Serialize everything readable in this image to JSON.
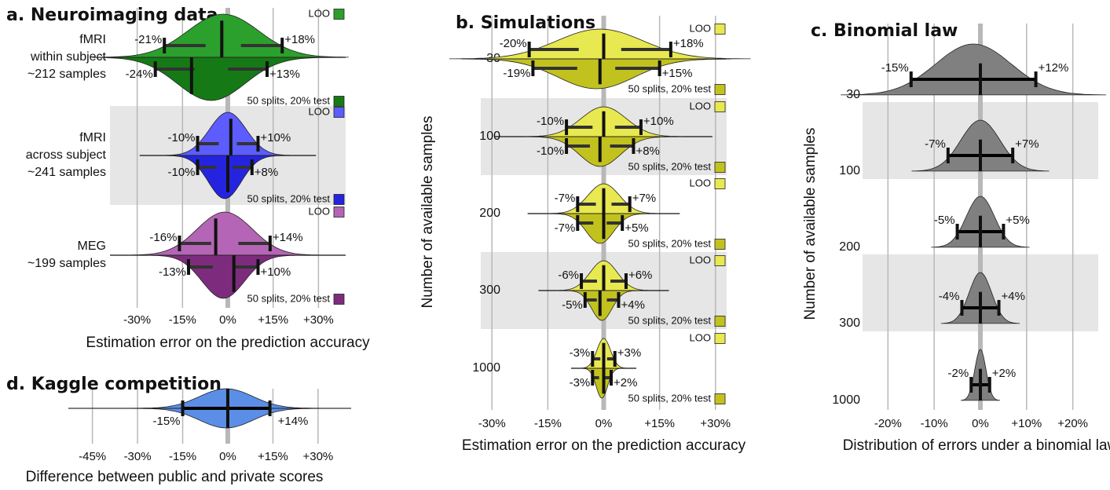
{
  "chart_data": [
    {
      "type": "violin",
      "title": "a. Neuroimaging data",
      "xlabel": "Estimation error on the prediction accuracy",
      "xlim": [
        -39,
        39
      ],
      "xticks": [
        {
          "value": -30,
          "label": "-30%"
        },
        {
          "value": -15,
          "label": "-15%"
        },
        {
          "value": 0,
          "label": "0%"
        },
        {
          "value": 15,
          "label": "+15%"
        },
        {
          "value": 30,
          "label": "+30%"
        }
      ],
      "rows": [
        {
          "label": [
            "fMRI",
            "within subject",
            "~212 samples"
          ],
          "violins": [
            {
              "name": "LOO",
              "color": "#2ca02c",
              "median": -2,
              "values": [
                -21,
                18
              ],
              "value_labels": [
                "-21%",
                "+18%"
              ]
            },
            {
              "name": "50 splits, 20% test",
              "color": "#157a15",
              "median": -12,
              "values": [
                -24,
                13
              ],
              "value_labels": [
                "-24%",
                "+13%"
              ]
            }
          ]
        },
        {
          "label": [
            "fMRI",
            "across subject",
            "~241 samples"
          ],
          "violins": [
            {
              "name": "LOO",
              "color": "#5c5cff",
              "median": 1,
              "values": [
                -10,
                10
              ],
              "value_labels": [
                "-10%",
                "+10%"
              ]
            },
            {
              "name": "50 splits, 20% test",
              "color": "#2424e0",
              "median": 0,
              "values": [
                -10,
                8
              ],
              "value_labels": [
                "-10%",
                "+8%"
              ]
            }
          ]
        },
        {
          "label": [
            "MEG",
            "~199 samples"
          ],
          "violins": [
            {
              "name": "LOO",
              "color": "#b565b5",
              "median": -4,
              "values": [
                -16,
                14
              ],
              "value_labels": [
                "-16%",
                "+14%"
              ]
            },
            {
              "name": "50 splits, 20% test",
              "color": "#7d2c7d",
              "median": 2,
              "values": [
                -13,
                10
              ],
              "value_labels": [
                "-13%",
                "+10%"
              ]
            }
          ]
        }
      ]
    },
    {
      "type": "violin",
      "title": "b. Simulations",
      "xlabel": "Estimation error on the prediction accuracy",
      "ylabel": "Number of available samples",
      "xlim": [
        -33,
        33
      ],
      "xticks": [
        {
          "value": -30,
          "label": "-30%"
        },
        {
          "value": -15,
          "label": "-15%"
        },
        {
          "value": 0,
          "label": "0%"
        },
        {
          "value": 15,
          "label": "+15%"
        },
        {
          "value": 30,
          "label": "+30%"
        }
      ],
      "rows": [
        {
          "label": [
            "30"
          ],
          "violins": [
            {
              "name": "LOO",
              "color": "#e8e850",
              "median": 0,
              "values": [
                -20,
                18
              ],
              "value_labels": [
                "-20%",
                "+18%"
              ]
            },
            {
              "name": "50 splits, 20% test",
              "color": "#c2c21e",
              "median": -1,
              "values": [
                -19,
                15
              ],
              "value_labels": [
                "-19%",
                "+15%"
              ]
            }
          ]
        },
        {
          "label": [
            "100"
          ],
          "violins": [
            {
              "name": "LOO",
              "color": "#e8e850",
              "median": 0,
              "values": [
                -10,
                10
              ],
              "value_labels": [
                "-10%",
                "+10%"
              ]
            },
            {
              "name": "50 splits, 20% test",
              "color": "#c2c21e",
              "median": -1,
              "values": [
                -10,
                8
              ],
              "value_labels": [
                "-10%",
                "+8%"
              ]
            }
          ]
        },
        {
          "label": [
            "200"
          ],
          "violins": [
            {
              "name": "LOO",
              "color": "#e8e850",
              "median": 0,
              "values": [
                -7,
                7
              ],
              "value_labels": [
                "-7%",
                "+7%"
              ]
            },
            {
              "name": "50 splits, 20% test",
              "color": "#c2c21e",
              "median": 0,
              "values": [
                -7,
                5
              ],
              "value_labels": [
                "-7%",
                "+5%"
              ]
            }
          ]
        },
        {
          "label": [
            "300"
          ],
          "violins": [
            {
              "name": "LOO",
              "color": "#e8e850",
              "median": 0,
              "values": [
                -6,
                6
              ],
              "value_labels": [
                "-6%",
                "+6%"
              ]
            },
            {
              "name": "50 splits, 20% test",
              "color": "#c2c21e",
              "median": -1,
              "values": [
                -5,
                4
              ],
              "value_labels": [
                "-5%",
                "+4%"
              ]
            }
          ]
        },
        {
          "label": [
            "1000"
          ],
          "violins": [
            {
              "name": "LOO",
              "color": "#e8e850",
              "median": 0,
              "values": [
                -3,
                3
              ],
              "value_labels": [
                "-3%",
                "+3%"
              ]
            },
            {
              "name": "50 splits, 20% test",
              "color": "#c2c21e",
              "median": 0,
              "values": [
                -3,
                2
              ],
              "value_labels": [
                "-3%",
                "+2%"
              ]
            }
          ]
        }
      ]
    },
    {
      "type": "half-violin",
      "title": "c. Binomial law",
      "xlabel": "Distribution of errors under a binomial law",
      "ylabel": "Number of available samples",
      "xlim": [
        -25.5,
        25.5
      ],
      "xticks": [
        {
          "value": -20,
          "label": "-20%"
        },
        {
          "value": -10,
          "label": "-10%"
        },
        {
          "value": 0,
          "label": "0%"
        },
        {
          "value": 10,
          "label": "+10%"
        },
        {
          "value": 20,
          "label": "+20%"
        }
      ],
      "rows": [
        {
          "label": [
            "30"
          ],
          "violins": [
            {
              "color": "#808080",
              "median": 0,
              "values": [
                -15,
                12
              ],
              "value_labels": [
                "-15%",
                "+12%"
              ]
            }
          ]
        },
        {
          "label": [
            "100"
          ],
          "violins": [
            {
              "color": "#808080",
              "median": 0,
              "values": [
                -7,
                7
              ],
              "value_labels": [
                "-7%",
                "+7%"
              ]
            }
          ]
        },
        {
          "label": [
            "200"
          ],
          "violins": [
            {
              "color": "#808080",
              "median": 0,
              "values": [
                -5,
                5
              ],
              "value_labels": [
                "-5%",
                "+5%"
              ]
            }
          ]
        },
        {
          "label": [
            "300"
          ],
          "violins": [
            {
              "color": "#808080",
              "median": 0,
              "values": [
                -4,
                4
              ],
              "value_labels": [
                "-4%",
                "+4%"
              ]
            }
          ]
        },
        {
          "label": [
            "1000"
          ],
          "violins": [
            {
              "color": "#808080",
              "median": 0,
              "values": [
                -2,
                2
              ],
              "value_labels": [
                "-2%",
                "+2%"
              ]
            }
          ]
        }
      ]
    },
    {
      "type": "sym-violin",
      "title": "d. Kaggle competition",
      "xlabel": "Difference between public and private scores",
      "xlim": [
        -53,
        41
      ],
      "xticks": [
        {
          "value": -45,
          "label": "-45%"
        },
        {
          "value": -30,
          "label": "-30%"
        },
        {
          "value": -15,
          "label": "-15%"
        },
        {
          "value": 0,
          "label": "0%"
        },
        {
          "value": 15,
          "label": "+15%"
        },
        {
          "value": 30,
          "label": "+30%"
        }
      ],
      "rows": [
        {
          "violins": [
            {
              "color": "#5b8ee6",
              "median": 0,
              "values": [
                -15,
                14
              ],
              "value_labels": [
                "-15%",
                "+14%"
              ]
            }
          ]
        }
      ]
    }
  ]
}
